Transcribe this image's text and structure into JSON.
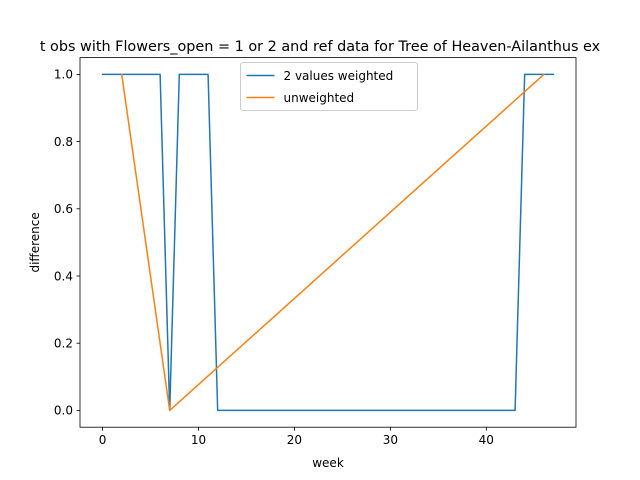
{
  "chart_data": {
    "type": "line",
    "title": "t obs with Flowers_open = 1 or 2 and ref data for Tree of Heaven-Ailanthus ex",
    "xlabel": "week",
    "ylabel": "difference",
    "xlim": [
      -2.35,
      49.35
    ],
    "ylim": [
      -0.05,
      1.05
    ],
    "xticks": [
      0,
      10,
      20,
      30,
      40
    ],
    "yticks": [
      0.0,
      0.2,
      0.4,
      0.6,
      0.8,
      1.0
    ],
    "xtick_labels": [
      "0",
      "10",
      "20",
      "30",
      "40"
    ],
    "ytick_labels": [
      "0.0",
      "0.2",
      "0.4",
      "0.6",
      "0.8",
      "1.0"
    ],
    "grid": false,
    "legend_position": "upper center",
    "series": [
      {
        "name": "2 values weighted",
        "color": "#1f77b4",
        "x": [
          0,
          1,
          2,
          3,
          4,
          5,
          6,
          7,
          8,
          9,
          10,
          11,
          12,
          13,
          14,
          15,
          16,
          17,
          18,
          19,
          20,
          21,
          22,
          23,
          24,
          25,
          26,
          27,
          28,
          29,
          30,
          31,
          32,
          33,
          34,
          35,
          36,
          37,
          38,
          39,
          40,
          41,
          42,
          43,
          44,
          45,
          46,
          47
        ],
        "y": [
          1,
          1,
          1,
          1,
          1,
          1,
          1,
          0,
          1,
          1,
          1,
          1,
          0,
          0,
          0,
          0,
          0,
          0,
          0,
          0,
          0,
          0,
          0,
          0,
          0,
          0,
          0,
          0,
          0,
          0,
          0,
          0,
          0,
          0,
          0,
          0,
          0,
          0,
          0,
          0,
          0,
          0,
          0,
          0,
          1,
          1,
          1,
          1
        ]
      },
      {
        "name": "unweighted",
        "color": "#ff7f0e",
        "x": [
          2,
          7,
          46
        ],
        "y": [
          1,
          0,
          1
        ]
      }
    ]
  }
}
